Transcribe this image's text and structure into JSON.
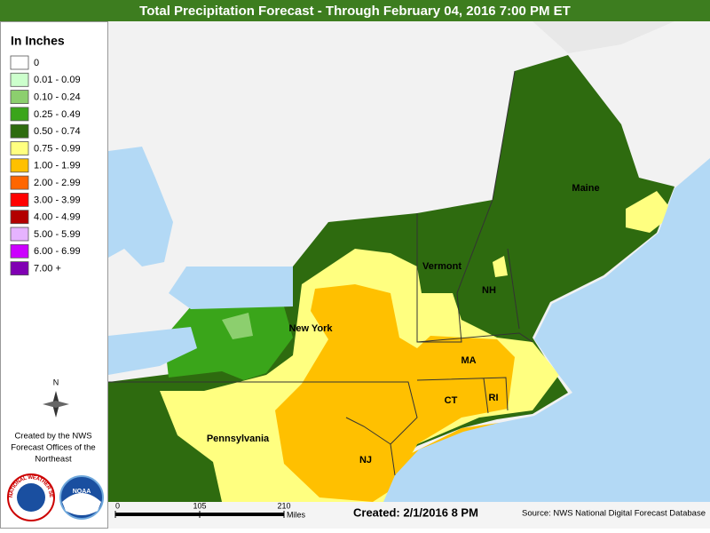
{
  "title": "Total Precipitation Forecast - Through February 04, 2016 7:00 PM ET",
  "legend": {
    "title": "In Inches",
    "items": [
      {
        "label": "0",
        "color": "#ffffff"
      },
      {
        "label": "0.01 - 0.09",
        "color": "#ccffcc"
      },
      {
        "label": "0.10 - 0.24",
        "color": "#8ccf6e"
      },
      {
        "label": "0.25 - 0.49",
        "color": "#3aa51a"
      },
      {
        "label": "0.50 - 0.74",
        "color": "#2e6b0f"
      },
      {
        "label": "0.75 - 0.99",
        "color": "#ffff80"
      },
      {
        "label": "1.00 - 1.99",
        "color": "#ffc000"
      },
      {
        "label": "2.00 - 2.99",
        "color": "#ff6600"
      },
      {
        "label": "3.00 - 3.99",
        "color": "#ff0000"
      },
      {
        "label": "4.00 - 4.99",
        "color": "#b30000"
      },
      {
        "label": "5.00 - 5.99",
        "color": "#e6b3ff"
      },
      {
        "label": "6.00 - 6.99",
        "color": "#cc00ff"
      },
      {
        "label": "7.00 +",
        "color": "#8000b3"
      }
    ]
  },
  "north_label": "N",
  "credits": [
    "Created by the NWS",
    "Forecast Offices of the",
    "Northeast"
  ],
  "logos": {
    "nws": "NATIONAL WEATHER SERVICE",
    "noaa": "NOAA"
  },
  "states": [
    "Maine",
    "Vermont",
    "NH",
    "New York",
    "MA",
    "CT",
    "RI",
    "Pennsylvania",
    "NJ"
  ],
  "scale_bar": {
    "ticks": [
      0,
      105,
      210
    ],
    "unit": "Miles"
  },
  "created": "Created: 2/1/2016 8 PM",
  "source": "Source: NWS National Digital Forecast Database"
}
